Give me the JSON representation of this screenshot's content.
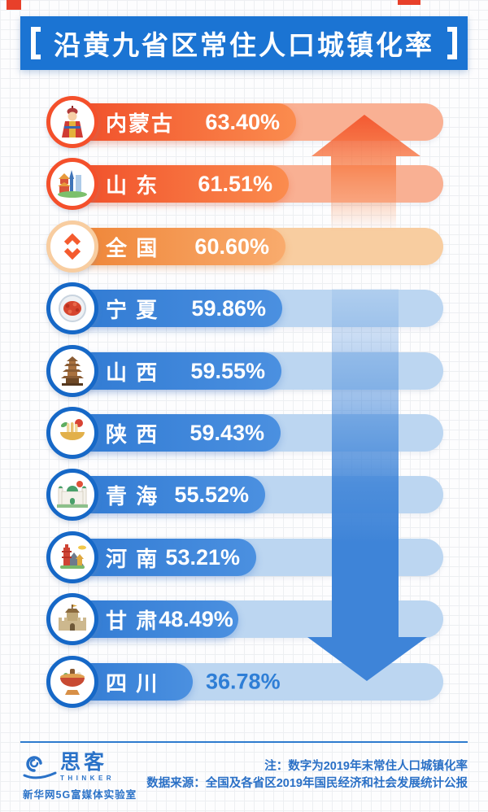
{
  "colors": {
    "title_bg": "#1b74d3",
    "tape": "#e8402a",
    "orange_bar_start": "#f04a27",
    "orange_bar_end": "#fb8c4e",
    "orange_track": "#f9b093",
    "national_bar_start": "#ee8233",
    "national_bar_end": "#f9ab6d",
    "national_track": "#f8cda0",
    "blue_bar_start": "#2f79d2",
    "blue_bar_end": "#4b90e0",
    "blue_track": "#bcd6f1",
    "up_arrow": "#f45b2e",
    "down_arrow": "#3e84d8",
    "footer_text": "#2a70c6",
    "outside_value_text": "#2e7ed6"
  },
  "title": {
    "text": "沿黄九省区常住人口城镇化率"
  },
  "chart_data": {
    "type": "bar",
    "orientation": "horizontal",
    "title": "沿黄九省区常住人口城镇化率",
    "unit": "%",
    "xlim": [
      0,
      100
    ],
    "grid_background": true,
    "legend": false,
    "categories": [
      "内蒙古",
      "山 东",
      "全 国",
      "宁 夏",
      "山 西",
      "陕 西",
      "青 海",
      "河 南",
      "甘 肃",
      "四 川"
    ],
    "values": [
      63.4,
      61.51,
      60.6,
      59.86,
      59.55,
      59.43,
      55.52,
      53.21,
      48.49,
      36.78
    ],
    "value_labels": [
      "63.40%",
      "61.51%",
      "60.60%",
      "59.86%",
      "59.55%",
      "59.43%",
      "55.52%",
      "53.21%",
      "48.49%",
      "36.78%"
    ],
    "series_groups": [
      "above-national",
      "above-national",
      "national-average",
      "below-national",
      "below-national",
      "below-national",
      "below-national",
      "below-national",
      "below-national",
      "below-national"
    ],
    "icons": [
      "mongolian-figure-icon",
      "shandong-skyline-icon",
      "national-updown-icon",
      "goji-plate-icon",
      "pagoda-tower-icon",
      "noodle-bowl-icon",
      "mosque-icon",
      "henan-landmark-icon",
      "fortress-icon",
      "hotpot-icon"
    ],
    "annotations": [
      "up-arrow",
      "down-arrow"
    ]
  },
  "footer": {
    "note": "注：数字为2019年末常住人口城镇化率",
    "source": "数据来源：全国及各省区2019年国民经济和社会发展统计公报",
    "logo": {
      "name": "思客",
      "subtitle": "THINKER",
      "lab": "新华网5G富媒体实验室"
    }
  }
}
